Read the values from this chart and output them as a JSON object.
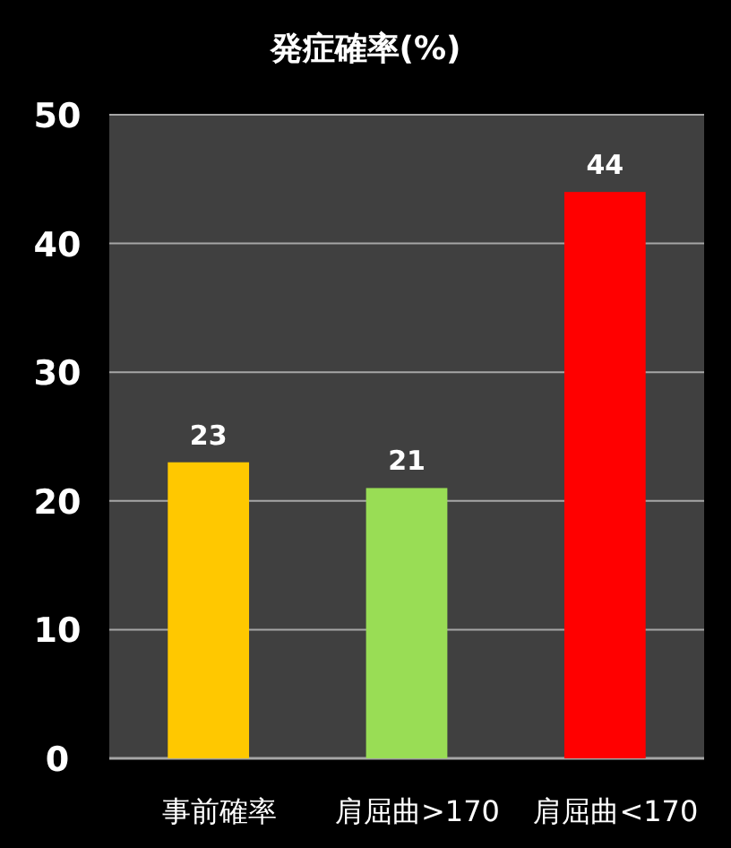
{
  "chart_data": {
    "type": "bar",
    "title": "発症確率(%)",
    "categories": [
      "事前確率",
      "肩屈曲>170",
      "肩屈曲<170"
    ],
    "values": [
      23,
      21,
      44
    ],
    "colors": [
      "#ffc800",
      "#99dd55",
      "#ff0000"
    ],
    "ylim": [
      0,
      50
    ],
    "yticks": [
      0,
      10,
      20,
      30,
      40,
      50
    ],
    "grid": "y",
    "data_labels": true
  }
}
